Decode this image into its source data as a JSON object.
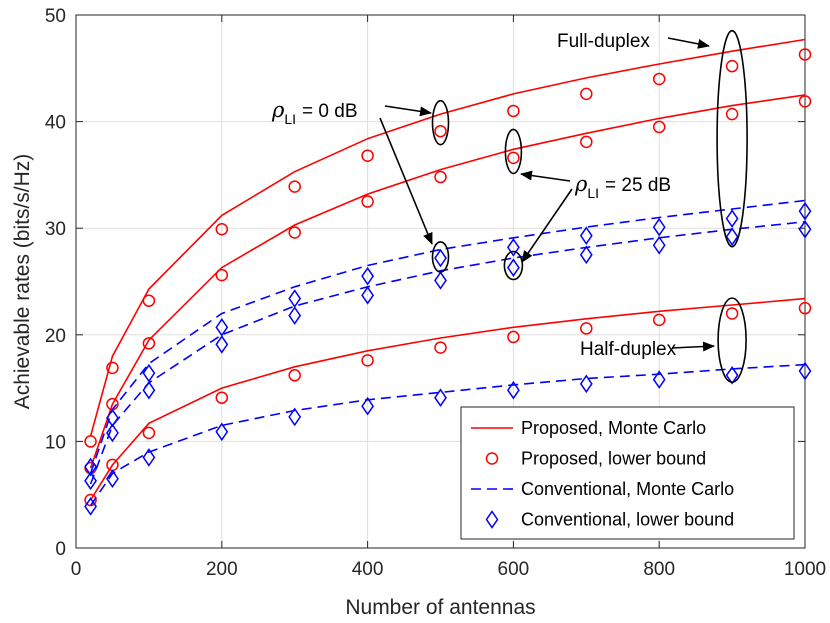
{
  "chart_data": {
    "type": "line",
    "xlabel": "Number of antennas",
    "ylabel": "Achievable rates (bits/s/Hz)",
    "xlim": [
      0,
      1000
    ],
    "ylim": [
      0,
      50
    ],
    "xticks": [
      0,
      200,
      400,
      600,
      800,
      1000
    ],
    "yticks": [
      0,
      10,
      20,
      30,
      40,
      50
    ],
    "grid": true,
    "legend_position": "bottom-right",
    "colors": {
      "proposed": "#ff0000",
      "conventional": "#0000ff"
    },
    "legend": [
      "Proposed, Monte Carlo",
      "Proposed, lower bound",
      "Conventional, Monte Carlo",
      "Conventional, lower bound"
    ],
    "annotations": {
      "full_duplex": "Full-duplex",
      "half_duplex": "Half-duplex",
      "rho_li_0": "= 0 dB",
      "rho_li_25": "= 25 dB",
      "rho_symbol": "ρ",
      "rho_subscript": "LI"
    },
    "x": [
      20,
      50,
      100,
      200,
      300,
      400,
      500,
      600,
      700,
      800,
      900,
      1000
    ],
    "series": [
      {
        "name": "Proposed, Monte Carlo (FD, ρLI = 0 dB)",
        "style": "proposed-mc",
        "values": [
          10.5,
          18.0,
          24.3,
          31.2,
          35.3,
          38.4,
          40.7,
          42.6,
          44.1,
          45.4,
          46.6,
          47.7
        ]
      },
      {
        "name": "Proposed, Monte Carlo (FD, ρLI = 25 dB)",
        "style": "proposed-mc",
        "values": [
          7.5,
          13.5,
          19.5,
          26.3,
          30.3,
          33.2,
          35.5,
          37.4,
          38.9,
          40.3,
          41.5,
          42.5
        ]
      },
      {
        "name": "Proposed, Monte Carlo (HD)",
        "style": "proposed-mc",
        "values": [
          4.5,
          7.8,
          11.7,
          15.0,
          17.0,
          18.5,
          19.7,
          20.7,
          21.5,
          22.2,
          22.8,
          23.4
        ]
      },
      {
        "name": "Proposed, lower bound (FD, ρLI = 0 dB)",
        "style": "proposed-lb",
        "values": [
          10.0,
          16.9,
          23.2,
          29.9,
          33.9,
          36.8,
          39.1,
          41.0,
          42.6,
          44.0,
          45.2,
          46.3
        ]
      },
      {
        "name": "Proposed, lower bound (FD, ρLI = 25 dB)",
        "style": "proposed-lb",
        "values": [
          7.5,
          13.5,
          19.2,
          25.6,
          29.6,
          32.5,
          34.8,
          36.6,
          38.1,
          39.5,
          40.7,
          41.9
        ]
      },
      {
        "name": "Proposed, lower bound (HD)",
        "style": "proposed-lb",
        "values": [
          4.5,
          7.8,
          10.8,
          14.1,
          16.2,
          17.6,
          18.8,
          19.8,
          20.6,
          21.4,
          22.0,
          22.5
        ]
      },
      {
        "name": "Conventional, Monte Carlo (FD, ρLI = 0 dB)",
        "style": "conventional-mc",
        "values": [
          7.0,
          13.0,
          17.3,
          22.0,
          24.5,
          26.5,
          28.0,
          29.1,
          30.1,
          31.0,
          31.8,
          32.6
        ]
      },
      {
        "name": "Conventional, Monte Carlo (FD, ρLI = 25 dB)",
        "style": "conventional-mc",
        "values": [
          6.0,
          11.5,
          15.5,
          20.0,
          22.7,
          24.5,
          26.0,
          27.2,
          28.2,
          29.1,
          29.9,
          30.6
        ]
      },
      {
        "name": "Conventional, Monte Carlo (HD)",
        "style": "conventional-mc",
        "values": [
          4.0,
          7.0,
          9.0,
          11.5,
          12.9,
          13.9,
          14.6,
          15.3,
          15.9,
          16.3,
          16.8,
          17.2
        ]
      },
      {
        "name": "Conventional, lower bound (FD, ρLI = 0 dB)",
        "style": "conventional-lb",
        "values": [
          7.6,
          12.2,
          16.4,
          20.7,
          23.4,
          25.5,
          27.2,
          28.2,
          29.3,
          30.1,
          30.9,
          31.6
        ]
      },
      {
        "name": "Conventional, lower bound (FD, ρLI = 25 dB)",
        "style": "conventional-lb",
        "values": [
          6.3,
          10.8,
          14.8,
          19.1,
          21.8,
          23.7,
          25.1,
          26.3,
          27.5,
          28.4,
          29.2,
          29.9
        ]
      },
      {
        "name": "Conventional, lower bound (HD)",
        "style": "conventional-lb",
        "values": [
          3.9,
          6.5,
          8.5,
          10.9,
          12.3,
          13.3,
          14.1,
          14.8,
          15.4,
          15.8,
          16.2,
          16.6
        ]
      }
    ]
  }
}
